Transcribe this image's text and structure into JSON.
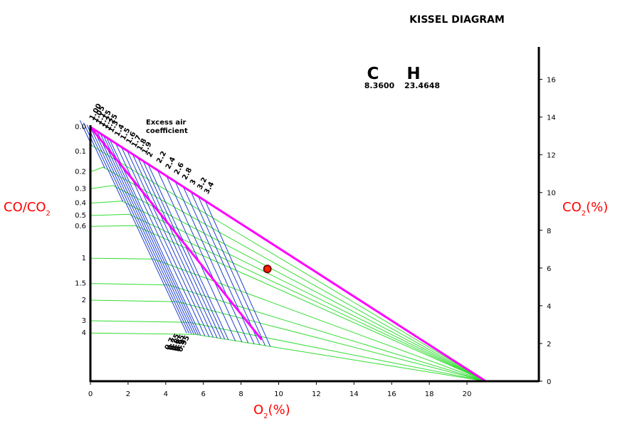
{
  "chart_data": {
    "type": "line",
    "title": "KISSEL DIAGRAM",
    "fuel": {
      "c_label": "C",
      "h_label": "H",
      "c_value": "8.3600",
      "h_value": "23.4648"
    },
    "xlabel_main": "O",
    "xlabel_sub": "2",
    "xlabel_unit": "(%)",
    "ylabel_right_main": "CO",
    "ylabel_right_sub": "2",
    "ylabel_right_unit": "(%)",
    "ylabel_left_main": "CO/CO",
    "ylabel_left_sub": "2",
    "xlim": [
      0,
      23.7
    ],
    "ylim": [
      0,
      17.8
    ],
    "x_ticks": [
      "0",
      "2",
      "4",
      "6",
      "8",
      "10",
      "12",
      "14",
      "16",
      "18",
      "20"
    ],
    "y_ticks_right": [
      "0",
      "2",
      "4",
      "6",
      "8",
      "10",
      "12",
      "14",
      "16"
    ],
    "ratio_labels": [
      "0.0",
      "0.1",
      "0.2",
      "0.3",
      "0.4",
      "0.5",
      "0.6",
      "1",
      "1.5",
      "2",
      "3",
      "4"
    ],
    "ratio_values": [
      0.0,
      0.1,
      0.2,
      0.3,
      0.4,
      0.5,
      0.6,
      1,
      1.5,
      2,
      3,
      4
    ],
    "excess_air_title": [
      "Excess air",
      "coefficient"
    ],
    "excess_air_labels": [
      "1.00",
      "1.05",
      "1.1",
      "1.15",
      "1.2",
      "1.25",
      "1.3",
      "1.4",
      "1.5",
      "1.6",
      "1.7",
      "1.8",
      "1.9",
      "2",
      "2.2",
      "2.4",
      "2.6",
      "2.8",
      "3",
      "3.2",
      "3.4"
    ],
    "excess_air_values": [
      1.0,
      1.05,
      1.1,
      1.15,
      1.2,
      1.25,
      1.3,
      1.4,
      1.5,
      1.6,
      1.7,
      1.8,
      1.9,
      2.0,
      2.2,
      2.4,
      2.6,
      2.8,
      3.0,
      3.2,
      3.4
    ],
    "sub_air_labels": [
      "0.7",
      "0.75",
      "0.8",
      "0.85",
      "0.9",
      "0.95"
    ],
    "sub_air_values": [
      0.7,
      0.75,
      0.8,
      0.85,
      0.9,
      0.95
    ],
    "co2_max": 13.47,
    "o2_max": 21.0,
    "stoich_line_end": {
      "o2": 9.1,
      "co2": 2.2
    },
    "measurement_point": {
      "o2": 9.4,
      "co2": 5.95
    },
    "colors": {
      "envelope": "#ff00ff",
      "excess_air_lines": "#1f3fcf",
      "ratio_lines": "#33dd33",
      "point_fill": "#ff2200",
      "point_stroke": "#800000",
      "axis_label": "#ff0000"
    }
  }
}
